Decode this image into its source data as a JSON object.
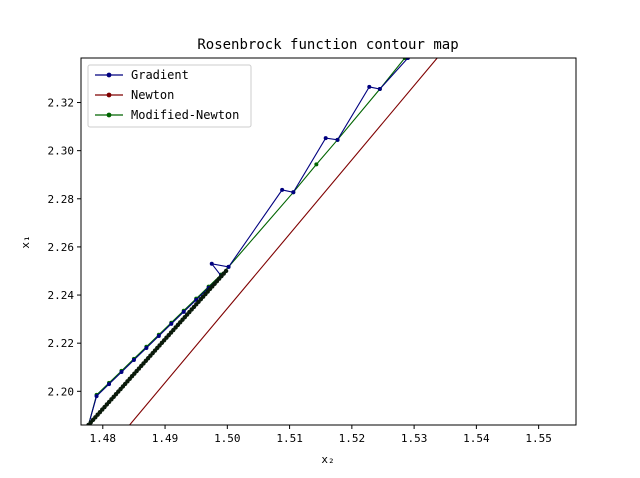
{
  "chart_data": {
    "type": "line",
    "title": "Rosenbrock function contour map",
    "xlabel": "x₂",
    "ylabel": "x₁",
    "xlim": [
      1.4765,
      1.556
    ],
    "ylim": [
      2.186,
      2.3385
    ],
    "xticks": [
      1.48,
      1.49,
      1.5,
      1.51,
      1.52,
      1.53,
      1.54,
      1.55
    ],
    "xtick_labels": [
      "1.48",
      "1.49",
      "1.50",
      "1.51",
      "1.52",
      "1.53",
      "1.54",
      "1.55"
    ],
    "yticks": [
      2.2,
      2.22,
      2.24,
      2.26,
      2.28,
      2.3,
      2.32
    ],
    "ytick_labels": [
      "2.20",
      "2.22",
      "2.24",
      "2.26",
      "2.28",
      "2.30",
      "2.32"
    ],
    "grid": false,
    "legend_position": "upper-left",
    "series": [
      {
        "name": "Gradient",
        "color": "#00007f",
        "marker": "dot",
        "x": [
          1.529,
          1.5245,
          1.5228,
          1.5177,
          1.5158,
          1.5106,
          1.5088,
          1.5002,
          1.4975,
          1.499,
          1.497,
          1.495,
          1.493,
          1.491,
          1.489,
          1.487,
          1.485,
          1.483,
          1.481,
          1.479,
          1.4777
        ],
        "y": [
          2.3385,
          2.3256,
          2.3265,
          2.3045,
          2.3052,
          2.2827,
          2.2837,
          2.2517,
          2.253,
          2.248,
          2.243,
          2.238,
          2.233,
          2.228,
          2.223,
          2.218,
          2.213,
          2.208,
          2.203,
          2.198,
          2.186
        ]
      },
      {
        "name": "Newton",
        "color": "#7f0000",
        "marker": "dot",
        "x": [
          1.4843,
          1.5337
        ],
        "y": [
          2.186,
          2.3385
        ]
      },
      {
        "name": "Modified-Newton",
        "color": "#006400",
        "marker": "dot",
        "x": [
          1.5285,
          1.5245,
          1.5177,
          1.5143,
          1.5106,
          1.5002,
          1.499,
          1.497,
          1.495,
          1.493,
          1.491,
          1.489,
          1.487,
          1.485,
          1.483,
          1.481,
          1.479,
          1.4777
        ],
        "y": [
          2.3385,
          2.3256,
          2.3045,
          2.2943,
          2.2827,
          2.2517,
          2.2485,
          2.2435,
          2.2385,
          2.2335,
          2.2285,
          2.2235,
          2.2185,
          2.2135,
          2.2085,
          2.2035,
          2.1985,
          2.186
        ]
      }
    ]
  }
}
